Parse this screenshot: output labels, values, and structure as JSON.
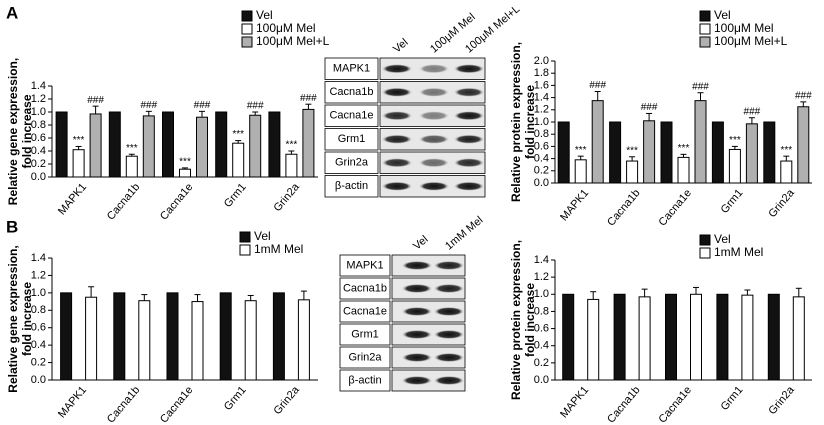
{
  "panels": [
    "A",
    "B"
  ],
  "chart_data": [
    {
      "type": "bar",
      "ylabel": [
        "Relative gene expression,",
        "fold increase"
      ],
      "categories": [
        "MAPK1",
        "Cacna1b",
        "Cacna1e",
        "Grm1",
        "Grin2a"
      ],
      "ylim": [
        0,
        1.4
      ],
      "yticks": [
        {
          "value": 0,
          "label": "0.0"
        },
        {
          "value": 0.2,
          "label": "0.2"
        },
        {
          "value": 0.4,
          "label": "0.4"
        },
        {
          "value": 0.6,
          "label": "0.6"
        },
        {
          "value": 0.8,
          "label": "0.8"
        },
        {
          "value": 1,
          "label": "1.0"
        },
        {
          "value": 1.2,
          "label": "1.2"
        },
        {
          "value": 1.4,
          "label": "1.4"
        }
      ],
      "legend": "top-right",
      "series": [
        {
          "name": "Vel",
          "color": "#111111",
          "values": [
            1,
            1,
            1,
            1,
            1
          ]
        },
        {
          "name": "100μM Mel",
          "color": "#ffffff",
          "values": [
            0.42,
            0.32,
            0.12,
            0.52,
            0.35
          ],
          "errors": [
            0.05,
            0.03,
            0.02,
            0.04,
            0.05
          ],
          "annotations": [
            "***",
            "***",
            "***",
            "***",
            "***"
          ]
        },
        {
          "name": "100μM Mel+L",
          "color": "#b0b0b0",
          "values": [
            0.97,
            0.94,
            0.92,
            0.95,
            1.04
          ],
          "errors": [
            0.12,
            0.07,
            0.09,
            0.05,
            0.08
          ],
          "annotations": [
            "###",
            "###",
            "###",
            "###",
            "###"
          ]
        }
      ]
    },
    {
      "type": "bar",
      "ylabel": [
        "Relative protein expression,",
        "fold increase"
      ],
      "categories": [
        "MAPK1",
        "Cacna1b",
        "Cacna1e",
        "Grm1",
        "Grin2a"
      ],
      "ylim": [
        0,
        2
      ],
      "yticks": [
        {
          "value": 0,
          "label": "0.0"
        },
        {
          "value": 0.2,
          "label": "0.2"
        },
        {
          "value": 0.4,
          "label": "0.4"
        },
        {
          "value": 0.6,
          "label": "0.6"
        },
        {
          "value": 0.8,
          "label": "0.8"
        },
        {
          "value": 1,
          "label": "1.0"
        },
        {
          "value": 1.2,
          "label": "1.2"
        },
        {
          "value": 1.4,
          "label": "1.4"
        },
        {
          "value": 1.6,
          "label": "1.6"
        },
        {
          "value": 1.8,
          "label": "1.8"
        },
        {
          "value": 2,
          "label": "2.0"
        }
      ],
      "legend": "top-right",
      "series": [
        {
          "name": "Vel",
          "color": "#111111",
          "values": [
            1,
            1,
            1,
            1,
            1
          ]
        },
        {
          "name": "100μM Mel",
          "color": "#ffffff",
          "values": [
            0.38,
            0.36,
            0.42,
            0.55,
            0.36
          ],
          "errors": [
            0.06,
            0.07,
            0.05,
            0.05,
            0.08
          ],
          "annotations": [
            "***",
            "***",
            "***",
            "***",
            "***"
          ]
        },
        {
          "name": "100μM Mel+L",
          "color": "#b0b0b0",
          "values": [
            1.35,
            1.02,
            1.35,
            0.97,
            1.25
          ],
          "errors": [
            0.15,
            0.12,
            0.13,
            0.1,
            0.08
          ],
          "annotations": [
            "###",
            "###",
            "###",
            "###",
            "###"
          ]
        }
      ]
    },
    {
      "type": "bar",
      "ylabel": [
        "Relative gene expression,",
        "fold increase"
      ],
      "categories": [
        "MAPK1",
        "Cacna1b",
        "Cacna1e",
        "Grm1",
        "Grin2a"
      ],
      "ylim": [
        0,
        1.4
      ],
      "yticks": [
        {
          "value": 0,
          "label": "0.0"
        },
        {
          "value": 0.2,
          "label": "0.2"
        },
        {
          "value": 0.4,
          "label": "0.4"
        },
        {
          "value": 0.6,
          "label": "0.6"
        },
        {
          "value": 0.8,
          "label": "0.8"
        },
        {
          "value": 1,
          "label": "1.0"
        },
        {
          "value": 1.2,
          "label": "1.2"
        },
        {
          "value": 1.4,
          "label": "1.4"
        }
      ],
      "legend": "top-right",
      "series": [
        {
          "name": "Vel",
          "color": "#111111",
          "values": [
            1,
            1,
            1,
            1,
            1
          ]
        },
        {
          "name": "1mM Mel",
          "color": "#ffffff",
          "values": [
            0.95,
            0.91,
            0.9,
            0.91,
            0.92
          ],
          "errors": [
            0.12,
            0.07,
            0.08,
            0.06,
            0.1
          ]
        }
      ]
    },
    {
      "type": "bar",
      "ylabel": [
        "Relative protein expression,",
        "fold increase"
      ],
      "categories": [
        "MAPK1",
        "Cacna1b",
        "Cacna1e",
        "Grm1",
        "Grin2a"
      ],
      "ylim": [
        0,
        1.4
      ],
      "yticks": [
        {
          "value": 0,
          "label": "0.0"
        },
        {
          "value": 0.2,
          "label": "0.2"
        },
        {
          "value": 0.4,
          "label": "0.4"
        },
        {
          "value": 0.6,
          "label": "0.6"
        },
        {
          "value": 0.8,
          "label": "0.8"
        },
        {
          "value": 1,
          "label": "1.0"
        },
        {
          "value": 1.2,
          "label": "1.2"
        },
        {
          "value": 1.4,
          "label": "1.4"
        }
      ],
      "legend": "top-right",
      "series": [
        {
          "name": "Vel",
          "color": "#111111",
          "values": [
            1,
            1,
            1,
            1,
            1
          ]
        },
        {
          "name": "1mM Mel",
          "color": "#ffffff",
          "values": [
            0.94,
            0.97,
            1.0,
            0.99,
            0.97
          ],
          "errors": [
            0.09,
            0.09,
            0.08,
            0.06,
            0.1
          ]
        }
      ]
    }
  ],
  "blots": [
    {
      "lanes": [
        "Vel",
        "100μM Mel",
        "100μM Mel+L"
      ],
      "rows": [
        "MAPK1",
        "Cacna1b",
        "Cacna1e",
        "Grm1",
        "Grin2a",
        "β-actin"
      ]
    },
    {
      "lanes": [
        "Vel",
        "1mM Mel"
      ],
      "rows": [
        "MAPK1",
        "Cacna1b",
        "Cacna1e",
        "Grm1",
        "Grin2a",
        "β-actin"
      ]
    }
  ]
}
